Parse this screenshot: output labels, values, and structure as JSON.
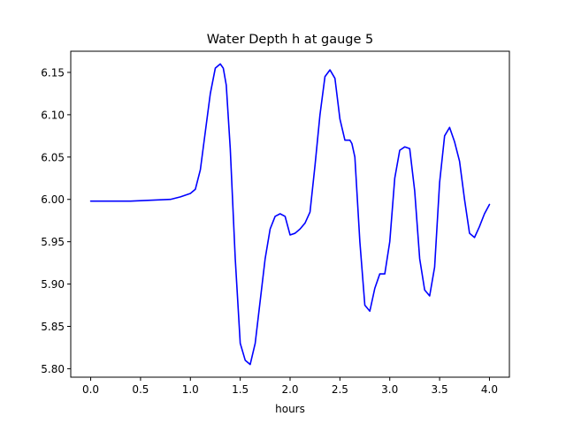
{
  "chart_data": {
    "type": "line",
    "title": "Water Depth h at gauge 5",
    "xlabel": "hours",
    "ylabel": "",
    "xlim": [
      -0.2,
      4.2
    ],
    "ylim": [
      5.79,
      6.175
    ],
    "grid": false,
    "x_ticks": [
      {
        "value": 0.0,
        "label": "0.0"
      },
      {
        "value": 0.5,
        "label": "0.5"
      },
      {
        "value": 1.0,
        "label": "1.0"
      },
      {
        "value": 1.5,
        "label": "1.5"
      },
      {
        "value": 2.0,
        "label": "2.0"
      },
      {
        "value": 2.5,
        "label": "2.5"
      },
      {
        "value": 3.0,
        "label": "3.0"
      },
      {
        "value": 3.5,
        "label": "3.5"
      },
      {
        "value": 4.0,
        "label": "4.0"
      }
    ],
    "y_ticks": [
      {
        "value": 5.8,
        "label": "5.80"
      },
      {
        "value": 5.85,
        "label": "5.85"
      },
      {
        "value": 5.9,
        "label": "5.90"
      },
      {
        "value": 5.95,
        "label": "5.95"
      },
      {
        "value": 6.0,
        "label": "6.00"
      },
      {
        "value": 6.05,
        "label": "6.05"
      },
      {
        "value": 6.1,
        "label": "6.10"
      },
      {
        "value": 6.15,
        "label": "6.15"
      }
    ],
    "series": [
      {
        "color": "#0000ff",
        "x": [
          0.0,
          0.2,
          0.4,
          0.6,
          0.8,
          0.9,
          1.0,
          1.05,
          1.1,
          1.15,
          1.2,
          1.25,
          1.3,
          1.33,
          1.36,
          1.4,
          1.45,
          1.5,
          1.55,
          1.6,
          1.65,
          1.7,
          1.75,
          1.8,
          1.85,
          1.9,
          1.95,
          2.0,
          2.05,
          2.1,
          2.15,
          2.2,
          2.25,
          2.3,
          2.35,
          2.4,
          2.45,
          2.5,
          2.55,
          2.6,
          2.62,
          2.65,
          2.7,
          2.75,
          2.8,
          2.85,
          2.9,
          2.95,
          3.0,
          3.05,
          3.1,
          3.15,
          3.2,
          3.25,
          3.3,
          3.35,
          3.4,
          3.45,
          3.5,
          3.55,
          3.6,
          3.65,
          3.7,
          3.75,
          3.8,
          3.85,
          3.9,
          3.95,
          4.0
        ],
        "y": [
          5.998,
          5.998,
          5.998,
          5.999,
          6.0,
          6.003,
          6.007,
          6.012,
          6.035,
          6.08,
          6.125,
          6.155,
          6.16,
          6.155,
          6.135,
          6.06,
          5.93,
          5.83,
          5.81,
          5.805,
          5.83,
          5.88,
          5.93,
          5.965,
          5.98,
          5.983,
          5.98,
          5.958,
          5.96,
          5.965,
          5.972,
          5.985,
          6.04,
          6.1,
          6.145,
          6.153,
          6.143,
          6.095,
          6.07,
          6.07,
          6.066,
          6.05,
          5.95,
          5.875,
          5.868,
          5.895,
          5.912,
          5.912,
          5.95,
          6.025,
          6.058,
          6.062,
          6.06,
          6.01,
          5.93,
          5.893,
          5.886,
          5.92,
          6.02,
          6.075,
          6.085,
          6.068,
          6.045,
          6.0,
          5.96,
          5.955,
          5.968,
          5.983,
          5.994
        ]
      }
    ]
  }
}
